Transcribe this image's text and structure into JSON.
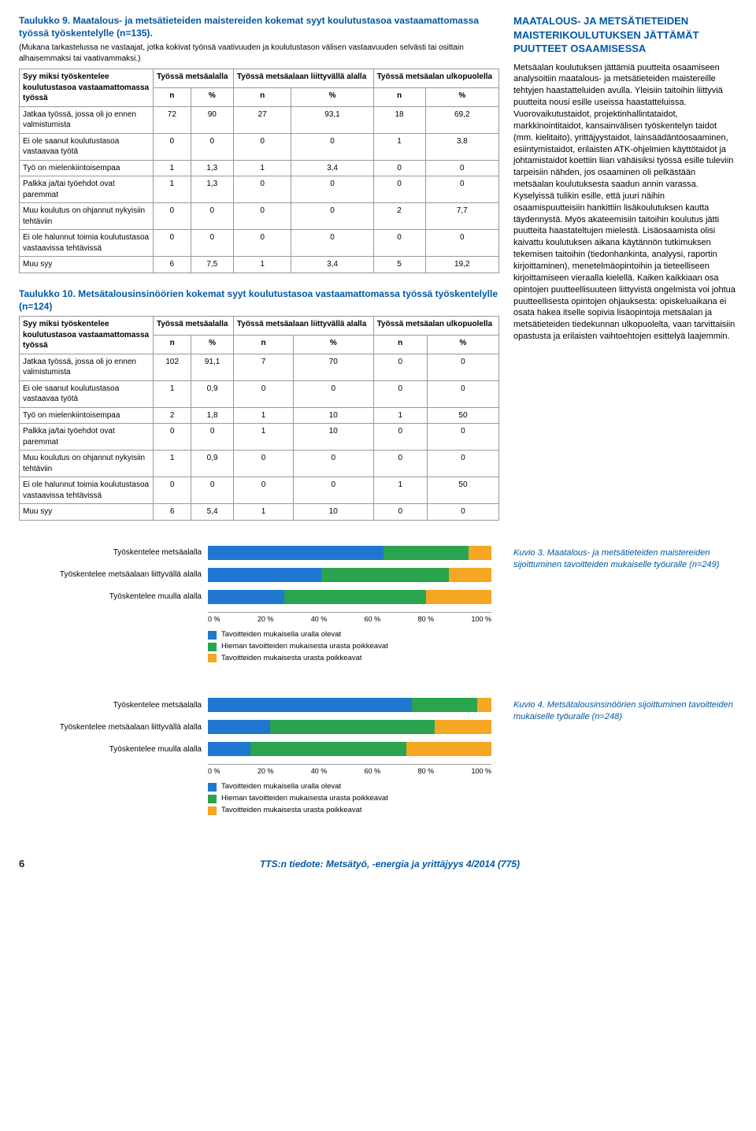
{
  "colors": {
    "heading_blue": "#0058a5",
    "bar_blue": "#1f77d0",
    "bar_green": "#2aa44f",
    "bar_orange": "#f5a623",
    "grid": "#cccccc",
    "border": "#999999"
  },
  "table9": {
    "title": "Taulukko 9. Maatalous- ja metsätieteiden maistereiden kokemat syyt koulutustasoa vastaamattomassa työssä työskentelylle (n=135).",
    "sub": "(Mukana tarkastelussa ne vastaajat, jotka kokivat työnsä vaativuuden ja koulutustason välisen vastaavuuden selvästi tai osittain alhaisemmaksi tai vaativammaksi.)",
    "row_head": "Syy miksi työskentelee koulutustasoa vastaamattomassa työssä",
    "col_groups": [
      "Työssä metsäalalla",
      "Työssä metsäalaan liittyvällä alalla",
      "Työssä metsäalan ulkopuolella"
    ],
    "sub_cols": [
      "n",
      "%",
      "n",
      "%",
      "n",
      "%"
    ],
    "rows": [
      {
        "label": "Jatkaa työssä, jossa oli jo ennen valmistumista",
        "vals": [
          "72",
          "90",
          "27",
          "93,1",
          "18",
          "69,2"
        ]
      },
      {
        "label": "Ei ole saanut koulutustasoa vastaavaa työtä",
        "vals": [
          "0",
          "0",
          "0",
          "0",
          "1",
          "3,8"
        ]
      },
      {
        "label": "Työ on mielenkiintoisempaa",
        "vals": [
          "1",
          "1,3",
          "1",
          "3,4",
          "0",
          "0"
        ]
      },
      {
        "label": "Palkka ja/tai työehdot ovat paremmat",
        "vals": [
          "1",
          "1,3",
          "0",
          "0",
          "0",
          "0"
        ]
      },
      {
        "label": "Muu koulutus on ohjannut nykyisiin tehtäviin",
        "vals": [
          "0",
          "0",
          "0",
          "0",
          "2",
          "7,7"
        ]
      },
      {
        "label": "Ei ole halunnut toimia koulutustasoa vastaavissa tehtävissä",
        "vals": [
          "0",
          "0",
          "0",
          "0",
          "0",
          "0"
        ]
      },
      {
        "label": "Muu syy",
        "vals": [
          "6",
          "7,5",
          "1",
          "3,4",
          "5",
          "19,2"
        ]
      }
    ]
  },
  "table10": {
    "title": "Taulukko 10. Metsätalousinsinöörien kokemat syyt koulutustasoa vastaamattomassa työssä työskentelylle (n=124)",
    "row_head": "Syy miksi työskentelee koulutustasoa vastaamattomassa työssä",
    "col_groups": [
      "Työssä metsäalalla",
      "Työssä metsäalaan liittyvällä alalla",
      "Työssä metsäalan ulkopuolella"
    ],
    "sub_cols": [
      "n",
      "%",
      "n",
      "%",
      "n",
      "%"
    ],
    "rows": [
      {
        "label": "Jatkaa työssä, jossa oli jo ennen valmistumista",
        "vals": [
          "102",
          "91,1",
          "7",
          "70",
          "0",
          "0"
        ]
      },
      {
        "label": "Ei ole saanut koulutustasoa vastaavaa työtä",
        "vals": [
          "1",
          "0,9",
          "0",
          "0",
          "0",
          "0"
        ]
      },
      {
        "label": "Työ on mielenkiintoisempaa",
        "vals": [
          "2",
          "1,8",
          "1",
          "10",
          "1",
          "50"
        ]
      },
      {
        "label": "Palkka ja/tai työehdot ovat paremmat",
        "vals": [
          "0",
          "0",
          "1",
          "10",
          "0",
          "0"
        ]
      },
      {
        "label": "Muu koulutus on ohjannut nykyisiin tehtäviin",
        "vals": [
          "1",
          "0,9",
          "0",
          "0",
          "0",
          "0"
        ]
      },
      {
        "label": "Ei ole halunnut toimia koulutustasoa vastaavissa tehtävissä",
        "vals": [
          "0",
          "0",
          "0",
          "0",
          "1",
          "50"
        ]
      },
      {
        "label": "Muu syy",
        "vals": [
          "6",
          "5,4",
          "1",
          "10",
          "0",
          "0"
        ]
      }
    ]
  },
  "side": {
    "heading": "MAATALOUS- JA METSÄTIETEIDEN MAISTERIKOULUTUKSEN JÄTTÄMÄT PUUTTEET OSAAMISESSA",
    "body": "Metsäalan koulutuksen jättämiä puutteita osaamiseen analysoitiin maatalous- ja metsätieteiden maistereille tehtyjen haastatteluiden avulla. Yleisiin taitoihin liittyviä puutteita nousi esille useissa haastatteluissa. Vuorovaikutustaidot, projektinhallintataidot, markkinointitaidot, kansainvälisen työskentelyn taidot (mm. kielitaito), yrittäjyystaidot, lainsäädäntöosaaminen, esiintymistaidot, erilaisten ATK-ohjelmien käyttötaidot ja johtamistaidot koettiin liian vähäisiksi työssä esille tuleviin tarpeisiin nähden, jos osaaminen oli pelkästään metsäalan koulutuksesta saadun annin varassa. Kyselyissä tulikin esille, että juuri näihin osaamispuutteisiin hankittiin lisäkoulutuksen kautta täydennystä. Myös akateemisiin taitoihin koulutus jätti puutteita haastateltujen mielestä. Lisäosaamista olisi kaivattu koulutuksen aikana käytännön tutkimuksen tekemisen taitoihin (tiedonhankinta, analyysi, raportin kirjoittaminen), menetelmäopintoihin ja tieteelliseen kirjoittamiseen vieraalla kielellä. Kaiken kaikkiaan osa opintojen puutteellisuuteen liittyvistä ongelmista voi johtua puutteellisesta opintojen ohjauksesta: opiskeluaikana ei osata hakea itselle sopivia lisäopintoja metsäalan ja metsätieteiden tiedekunnan ulkopuolelta, vaan tarvittaisiin opastusta ja erilaisten vaihtoehtojen esittelyä laajemmin."
  },
  "chart3": {
    "caption": "Kuvio 3. Maatalous- ja metsätieteiden maistereiden sijoittuminen tavoitteiden mukaiselle työuralle (n=249)",
    "ylabels": [
      "Työskentelee metsäalalla",
      "Työskentelee metsäalaan liittyvällä alalla",
      "Työskentelee muulla alalla"
    ],
    "series": [
      {
        "blue": 62,
        "green": 30,
        "orange": 8
      },
      {
        "blue": 40,
        "green": 45,
        "orange": 15
      },
      {
        "blue": 27,
        "green": 50,
        "orange": 23
      }
    ],
    "xticks": [
      "0 %",
      "20 %",
      "40 %",
      "60 %",
      "80 %",
      "100 %"
    ],
    "legend": [
      "Tavoitteiden mukaisella uralla olevat",
      "Hieman tavoitteiden mukaisesta urasta poikkeavat",
      "Tavoitteiden mukaisesta urasta poikkeavat"
    ]
  },
  "chart4": {
    "caption": "Kuvio 4. Metsätalousinsinöörien sijoittuminen tavoitteiden mukaiselle työuralle (n=248)",
    "ylabels": [
      "Työskentelee metsäalalla",
      "Työskentelee metsäalaan liittyvällä alalla",
      "Työskentelee muulla alalla"
    ],
    "series": [
      {
        "blue": 72,
        "green": 23,
        "orange": 5
      },
      {
        "blue": 22,
        "green": 58,
        "orange": 20
      },
      {
        "blue": 15,
        "green": 55,
        "orange": 30
      }
    ],
    "xticks": [
      "0 %",
      "20 %",
      "40 %",
      "60 %",
      "80 %",
      "100 %"
    ],
    "legend": [
      "Tavoitteiden mukaisella uralla olevat",
      "Hieman tavoitteiden mukaisesta urasta poikkeavat",
      "Tavoitteiden mukaisesta urasta poikkeavat"
    ]
  },
  "footer": {
    "page": "6",
    "text": "TTS:n tiedote: Metsätyö, -energia ja yrittäjyys 4/2014 (775)"
  }
}
